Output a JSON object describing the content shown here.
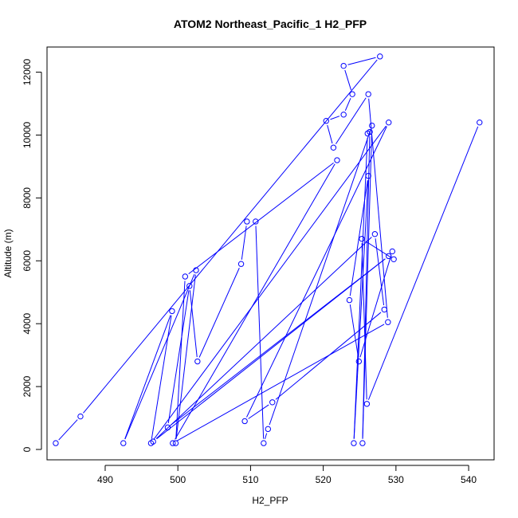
{
  "chart_data": {
    "type": "line",
    "title": "ATOM2 Northeast_Pacific_1 H2_PFP",
    "xlabel": "H2_PFP",
    "ylabel": "Altitude (m)",
    "xlim": [
      482,
      543.5
    ],
    "ylim": [
      -330,
      12800
    ],
    "xticks": [
      490,
      500,
      510,
      520,
      530,
      540
    ],
    "yticks": [
      0,
      2000,
      4000,
      6000,
      8000,
      10000,
      12000
    ],
    "grid": false,
    "legend": "none",
    "series_color": "#0000ff",
    "series": [
      {
        "markers": "open-circle",
        "points": [
          [
            483.2,
            200
          ],
          [
            486.6,
            1050
          ],
          [
            527.8,
            12500
          ],
          [
            522.8,
            12200
          ],
          [
            524.0,
            11300
          ],
          [
            522.8,
            10650
          ],
          [
            520.4,
            10450
          ],
          [
            521.4,
            9600
          ],
          [
            526.2,
            11300
          ],
          [
            528.9,
            4050
          ],
          [
            499.3,
            200
          ],
          [
            521.9,
            9200
          ],
          [
            501.0,
            5500
          ],
          [
            499.7,
            200
          ],
          [
            502.5,
            5700
          ],
          [
            492.5,
            200
          ],
          [
            499.2,
            4400
          ],
          [
            496.3,
            200
          ],
          [
            529.0,
            10400
          ],
          [
            509.2,
            900
          ],
          [
            513.0,
            1500
          ],
          [
            528.4,
            4450
          ],
          [
            527.1,
            6850
          ],
          [
            496.6,
            250
          ],
          [
            529.0,
            6150
          ],
          [
            498.6,
            700
          ],
          [
            501.6,
            5200
          ],
          [
            502.7,
            2800
          ],
          [
            508.7,
            5900
          ],
          [
            509.5,
            7250
          ],
          [
            510.7,
            7250
          ],
          [
            511.8,
            200
          ],
          [
            512.4,
            650
          ],
          [
            526.7,
            10300
          ],
          [
            525.4,
            200
          ],
          [
            526.4,
            10100
          ],
          [
            526.1,
            10050
          ],
          [
            524.2,
            200
          ],
          [
            526.2,
            8700
          ],
          [
            523.6,
            4750
          ],
          [
            524.9,
            2800
          ],
          [
            529.5,
            6300
          ],
          [
            529.7,
            6050
          ],
          [
            525.3,
            6700
          ],
          [
            526.0,
            1450
          ],
          [
            541.5,
            10400
          ]
        ]
      }
    ]
  }
}
